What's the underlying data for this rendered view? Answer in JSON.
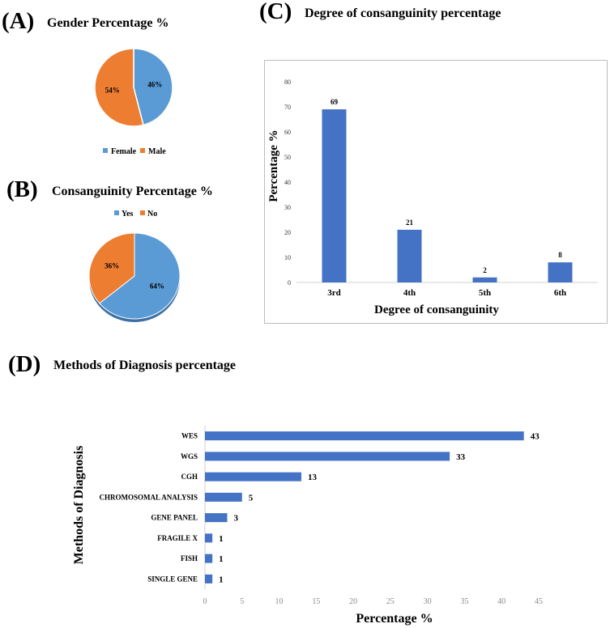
{
  "panels": {
    "a": {
      "letter": "(A)",
      "title": "Gender Percentage %"
    },
    "b": {
      "letter": "(B)",
      "title": "Consanguinity Percentage %"
    },
    "c": {
      "letter": "(C)",
      "title": "Degree of consanguinity percentage"
    },
    "d": {
      "letter": "(D)",
      "title": "Methods of Diagnosis percentage"
    }
  },
  "colors": {
    "blue": "#5b9bd5",
    "orange": "#ed7d31",
    "bar_blue": "#4472c4"
  },
  "chart_data": [
    {
      "id": "gender",
      "type": "pie",
      "title": "Gender Percentage %",
      "labels": [
        "Female",
        "Male"
      ],
      "values": [
        46,
        54
      ],
      "data_labels": [
        "46%",
        "54%"
      ],
      "colors": [
        "#5b9bd5",
        "#ed7d31"
      ],
      "legend": "bottom"
    },
    {
      "id": "consanguinity",
      "type": "pie",
      "title": "Consanguinity Percentage %",
      "labels": [
        "Yes",
        "No"
      ],
      "values": [
        64,
        36
      ],
      "data_labels": [
        "64%",
        "36%"
      ],
      "colors": [
        "#5b9bd5",
        "#ed7d31"
      ],
      "legend": "top"
    },
    {
      "id": "degree",
      "type": "bar",
      "title": "Degree of consanguinity percentage",
      "categories": [
        "3rd",
        "4th",
        "5th",
        "6th"
      ],
      "values": [
        69,
        21,
        2,
        8
      ],
      "data_labels": [
        "69",
        "21",
        "2",
        "8"
      ],
      "xlabel": "Degree of consanguinity",
      "ylabel": "Percentage %",
      "ylim": [
        0,
        80
      ],
      "yticks": [
        "0",
        "10",
        "20",
        "30",
        "40",
        "50",
        "60",
        "70",
        "80"
      ],
      "grid": false
    },
    {
      "id": "methods",
      "type": "bar",
      "orientation": "horizontal",
      "title": "Methods of Diagnosis percentage",
      "categories": [
        "WES",
        "WGS",
        "CGH",
        "CHROMOSOMAL ANALYSIS",
        "GENE PANEL",
        "FRAGILE X",
        "FISH",
        "SINGLE GENE"
      ],
      "values": [
        43,
        33,
        13,
        5,
        3,
        1,
        1,
        1
      ],
      "data_labels": [
        "43",
        "33",
        "13",
        "5",
        "3",
        "1",
        "1",
        "1"
      ],
      "xlabel": "Percentage %",
      "ylabel": "Methods of Diagnosis",
      "xlim": [
        0,
        45
      ],
      "xticks": [
        "0",
        "5",
        "10",
        "15",
        "20",
        "25",
        "30",
        "35",
        "40",
        "45"
      ],
      "grid": false
    }
  ]
}
